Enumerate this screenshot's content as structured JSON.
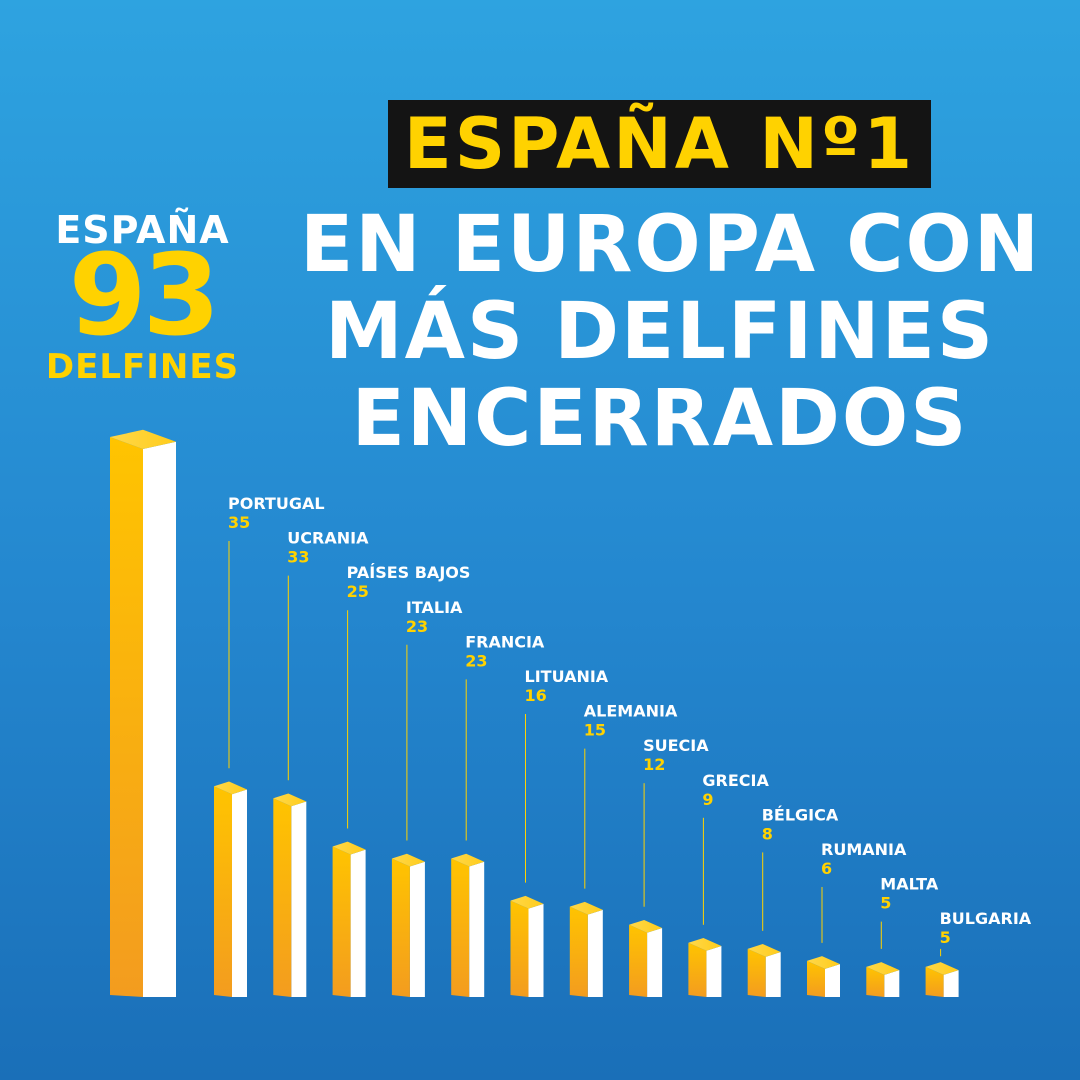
{
  "headline": {
    "box_text": "ESPAÑA Nº1",
    "lines": [
      "EN EUROPA CON",
      "MÁS DELFINES",
      "ENCERRADOS"
    ]
  },
  "spain_callout": {
    "label": "ESPAÑA",
    "value": "93",
    "unit": "DELFINES"
  },
  "colors": {
    "background_top": "#2ea3e0",
    "background_bottom": "#1a6fb8",
    "accent_yellow": "#ffd200",
    "bar_orange": "#f5a21d",
    "bar_white": "#ffffff",
    "headline_box": "#141414"
  },
  "chart_data": {
    "type": "bar",
    "categories": [
      "ESPAÑA",
      "PORTUGAL",
      "UCRANIA",
      "PAÍSES BAJOS",
      "ITALIA",
      "FRANCIA",
      "LITUANIA",
      "ALEMANIA",
      "SUECIA",
      "GRECIA",
      "BÉLGICA",
      "RUMANIA",
      "MALTA",
      "BULGARIA"
    ],
    "values": [
      93,
      35,
      33,
      25,
      23,
      23,
      16,
      15,
      12,
      9,
      8,
      6,
      5,
      5
    ],
    "labels": [
      "",
      "35",
      "33",
      "25",
      "23",
      "23",
      "16",
      "15",
      "12",
      "9",
      "8",
      "6",
      "5",
      "5"
    ],
    "ylim": [
      0,
      93
    ],
    "style": "3d-bars",
    "grid": false,
    "legend": "none"
  }
}
